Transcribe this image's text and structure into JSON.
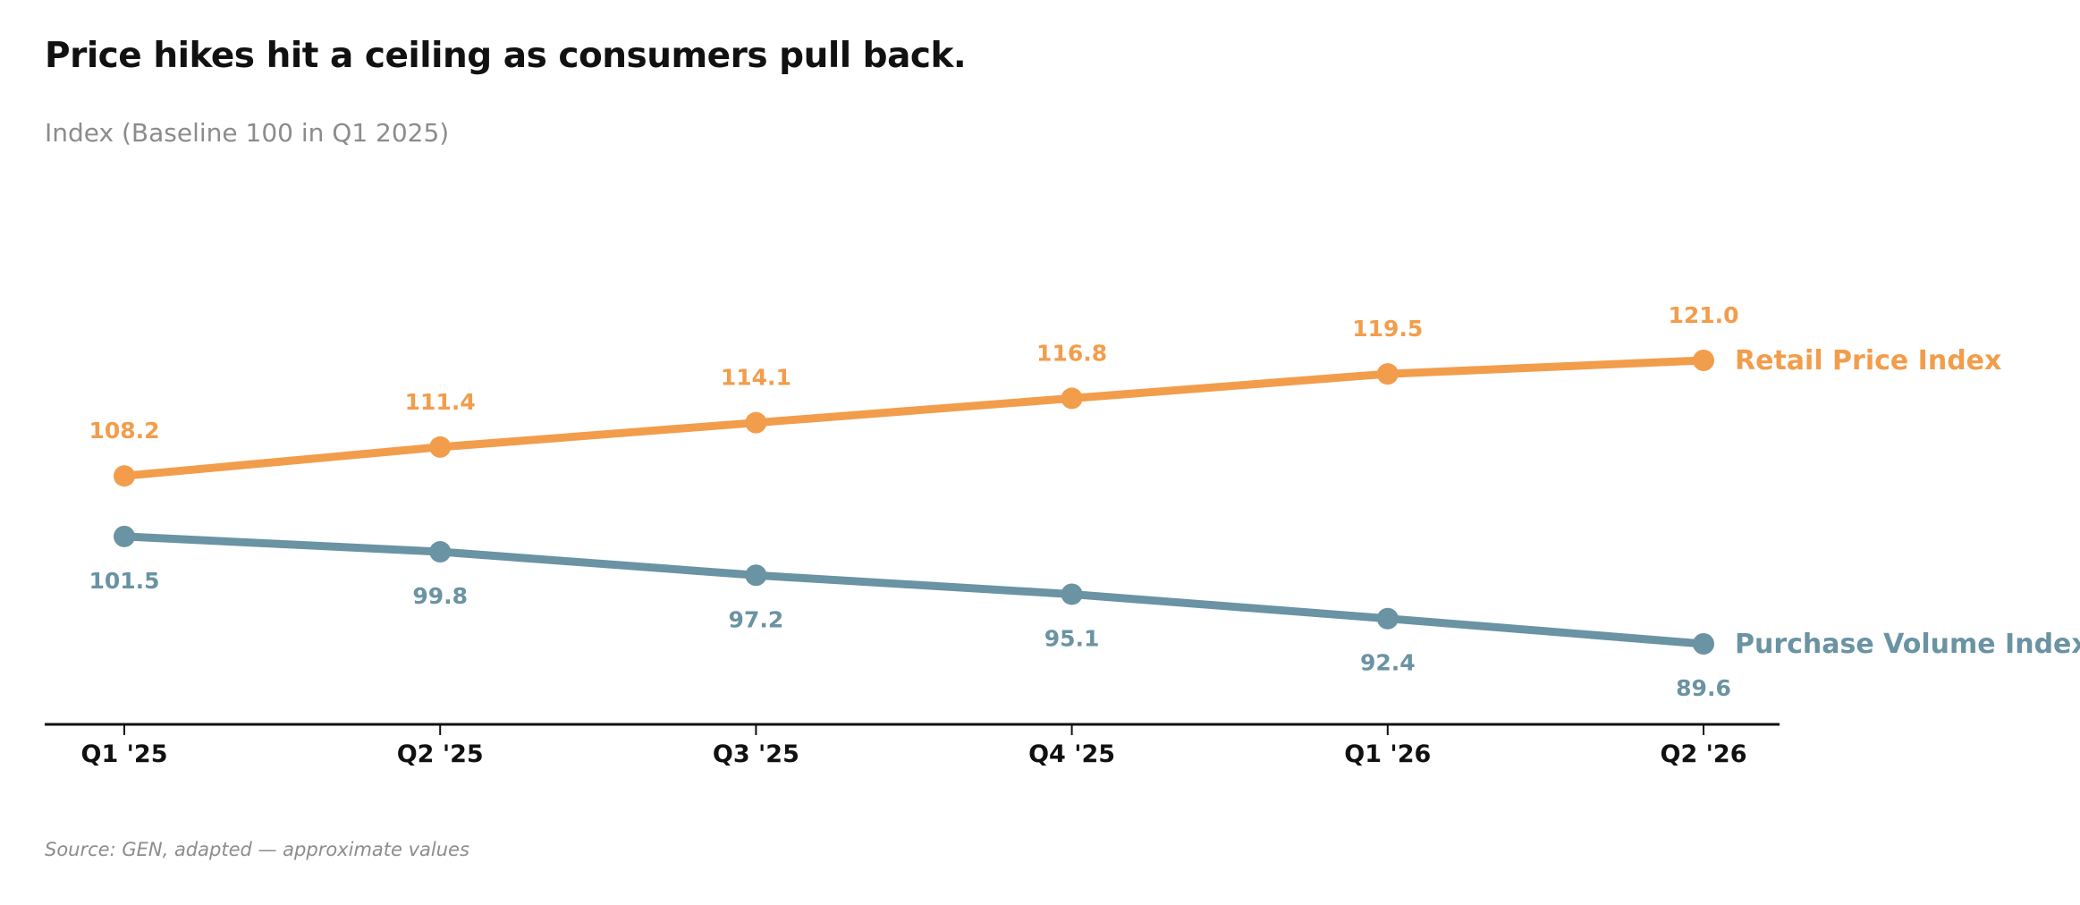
{
  "chart_data": {
    "type": "line",
    "title": "Price hikes hit a ceiling as consumers pull back.",
    "subtitle": "Index (Baseline 100 in Q1 2025)",
    "source": "Source: GEN, adapted — approximate values",
    "categories": [
      "Q1 '25",
      "Q2 '25",
      "Q3 '25",
      "Q4 '25",
      "Q1 '26",
      "Q2 '26"
    ],
    "series": [
      {
        "name": "Retail Price Index",
        "values": [
          108.2,
          111.4,
          114.1,
          116.8,
          119.5,
          121.0
        ],
        "labels": [
          "108.2",
          "111.4",
          "114.1",
          "116.8",
          "119.5",
          "121.0"
        ],
        "color": "#f29d4b",
        "label_position": "above"
      },
      {
        "name": "Purchase Volume Index",
        "values": [
          101.5,
          99.8,
          97.2,
          95.1,
          92.4,
          89.6
        ],
        "labels": [
          "101.5",
          "99.8",
          "97.2",
          "95.1",
          "92.4",
          "89.6"
        ],
        "color": "#6a93a3",
        "label_position": "below"
      }
    ],
    "legend": "direct labels at line ends",
    "grid": false
  }
}
